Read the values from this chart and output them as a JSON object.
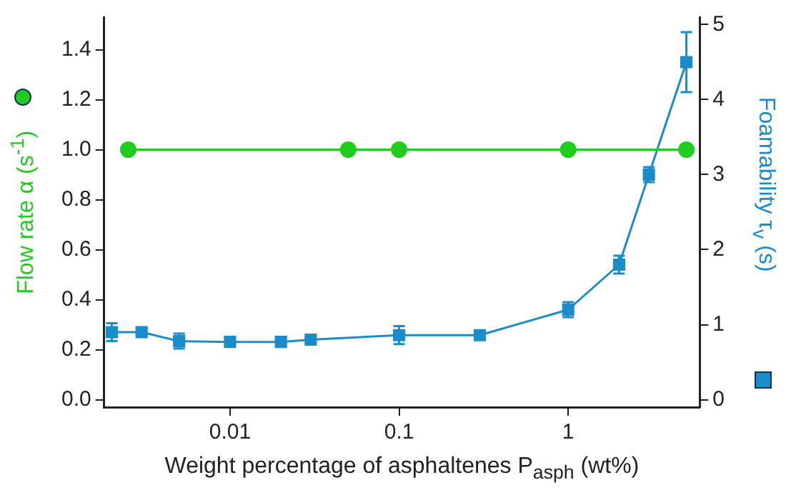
{
  "chart_data": {
    "type": "line",
    "xlabel": "Weight percentage of asphaltenes P$_{asph}$ (wt%)",
    "ylabel": "Flow rate α (s$^{-1}$)",
    "y2label": "Foamability τ$_{v}$ (s)",
    "log": "x",
    "xlim": [
      0.0018,
      6
    ],
    "xticks": [
      0.01,
      0.1,
      1
    ],
    "ylim": [
      -0.03,
      1.53
    ],
    "yticks": [
      {
        "value": 0,
        "label": "0.0"
      },
      0.2,
      0.4,
      0.6,
      0.8,
      {
        "value": 1,
        "label": "1.0"
      },
      1.2,
      1.4
    ],
    "y2lim": [
      -0.1,
      5.1
    ],
    "y2ticks": [
      0,
      1,
      2,
      3,
      4,
      5
    ],
    "grid": false,
    "legend": false,
    "series": [
      {
        "color": "#1fcc1f",
        "marker": "circle",
        "x": [
          0.0025,
          0.05,
          0.1,
          1,
          5
        ],
        "values": [
          1,
          1,
          1,
          1,
          1
        ]
      },
      {
        "color": "#1a8cc8",
        "marker": "square",
        "axis": "y2",
        "x": [
          0.002,
          0.003,
          0.005,
          0.01,
          0.02,
          0.03,
          0.1,
          0.3,
          1,
          2,
          3,
          5
        ],
        "values": [
          0.9,
          0.9,
          0.78,
          0.77,
          0.77,
          0.8,
          0.86,
          0.86,
          1.2,
          1.8,
          3.0,
          4.5
        ],
        "errors": [
          0.12,
          null,
          0.1,
          null,
          null,
          null,
          0.12,
          null,
          0.1,
          0.12,
          0.1,
          0.4
        ]
      }
    ]
  }
}
